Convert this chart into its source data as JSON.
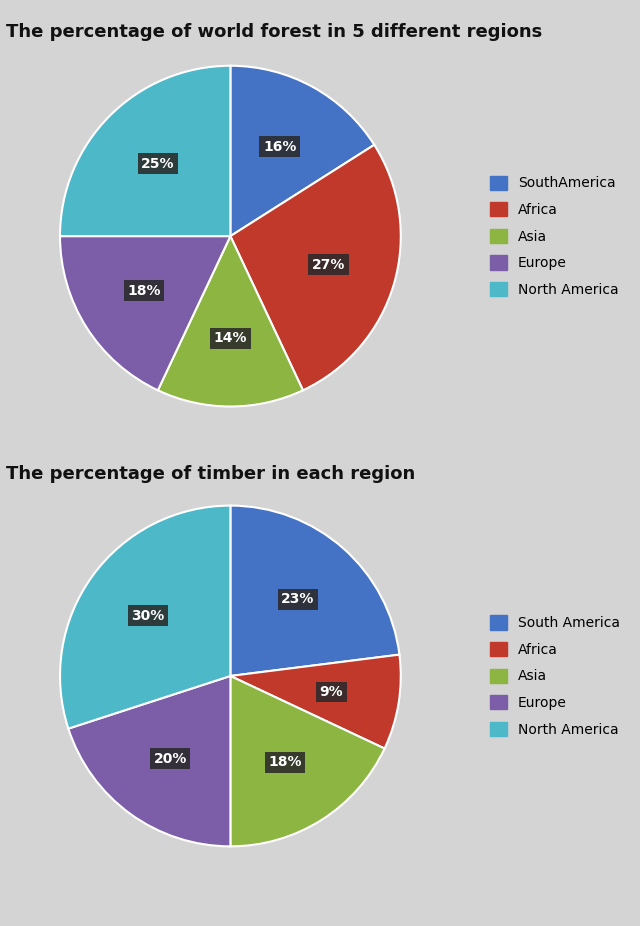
{
  "chart1": {
    "title": "The percentage of world forest in 5 different regions",
    "labels": [
      "SouthAmerica",
      "Africa",
      "Asia",
      "Europe",
      "North America"
    ],
    "values": [
      16,
      27,
      14,
      18,
      25
    ],
    "colors": [
      "#4472c4",
      "#c0392b",
      "#8db542",
      "#7b5ea7",
      "#4db8c8"
    ],
    "startangle": 90
  },
  "chart2": {
    "title": "The percentage of timber in each region",
    "labels": [
      "South America",
      "Africa",
      "Asia",
      "Europe",
      "North America"
    ],
    "values": [
      23,
      9,
      18,
      20,
      30
    ],
    "colors": [
      "#4472c4",
      "#c0392b",
      "#8db542",
      "#7b5ea7",
      "#4db8c8"
    ],
    "startangle": 90
  },
  "bg_color": "#d4d4d4",
  "bg_top": "#e8e8e8",
  "bg_mid": "#c8c8c8",
  "label_bg_color": "#2a2a2a",
  "label_text_color": "#ffffff",
  "label_fontsize": 10,
  "title_fontsize": 13,
  "legend_fontsize": 10,
  "divider_color": "#888888"
}
